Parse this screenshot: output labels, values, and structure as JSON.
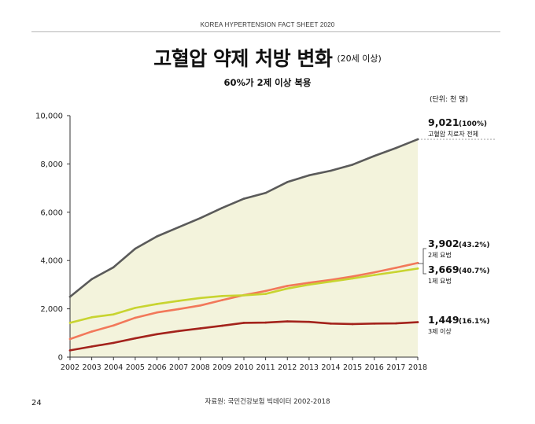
{
  "header": {
    "report_name": "KOREA HYPERTENSION FACT SHEET 2020",
    "title": "고혈압 약제 처방 변화",
    "title_note": "(20세 이상)",
    "subtitle": "60%가 2제 이상 복용",
    "unit": "(단위: 천 명)"
  },
  "footer": {
    "page_number": "24",
    "source": "자료원: 국민건강보험 빅데이터 2002-2018"
  },
  "chart_data": {
    "type": "line",
    "title": "고혈압 약제 처방 변화",
    "subtitle": "60%가 2제 이상 복용",
    "xlabel": "",
    "ylabel": "",
    "unit": "(단위: 천 명)",
    "x": [
      2002,
      2003,
      2004,
      2005,
      2006,
      2007,
      2008,
      2009,
      2010,
      2011,
      2012,
      2013,
      2014,
      2015,
      2016,
      2017,
      2018
    ],
    "ylim": [
      0,
      10000
    ],
    "yticks": [
      0,
      2000,
      4000,
      6000,
      8000,
      10000
    ],
    "ytick_labels": [
      "0",
      "2,000",
      "4,000",
      "6,000",
      "8,000",
      "10,000"
    ],
    "grid": false,
    "series": [
      {
        "name": "고혈압 치료자 전체",
        "color": "#5a5a5a",
        "area_fill": "#f3f3dc",
        "values": [
          2500,
          3230,
          3720,
          4490,
          5000,
          5380,
          5760,
          6180,
          6560,
          6800,
          7250,
          7530,
          7720,
          7970,
          8330,
          8660,
          9021
        ],
        "end_value": "9,021",
        "end_pct": "(100%)"
      },
      {
        "name": "2제 요법",
        "color": "#f2785a",
        "values": [
          750,
          1060,
          1310,
          1630,
          1850,
          1990,
          2140,
          2360,
          2570,
          2740,
          2950,
          3080,
          3200,
          3340,
          3510,
          3700,
          3902
        ],
        "end_value": "3,902",
        "end_pct": "(43.2%)"
      },
      {
        "name": "1제 요법",
        "color": "#c8d430",
        "values": [
          1420,
          1650,
          1770,
          2040,
          2200,
          2330,
          2450,
          2530,
          2560,
          2620,
          2840,
          3000,
          3130,
          3260,
          3400,
          3530,
          3669
        ],
        "end_value": "3,669",
        "end_pct": "(40.7%)"
      },
      {
        "name": "3제 이상",
        "color": "#a3231c",
        "values": [
          280,
          440,
          590,
          780,
          950,
          1080,
          1190,
          1300,
          1420,
          1430,
          1480,
          1460,
          1390,
          1370,
          1390,
          1400,
          1449
        ],
        "end_value": "1,449",
        "end_pct": "(16.1%)"
      }
    ]
  }
}
